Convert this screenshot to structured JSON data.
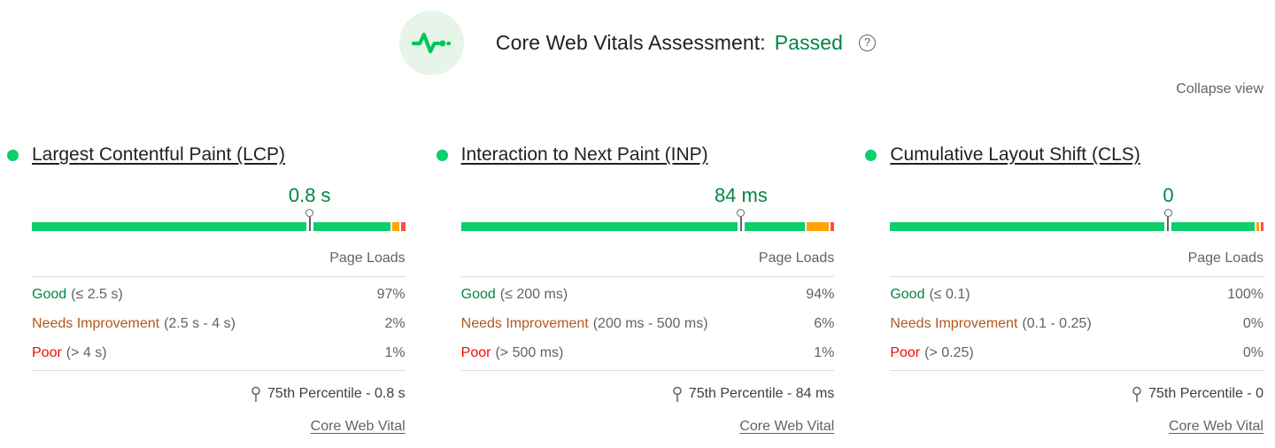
{
  "header": {
    "title": "Core Web Vitals Assessment:",
    "status": "Passed",
    "help_glyph": "?"
  },
  "actions": {
    "collapse_label": "Collapse view"
  },
  "labels": {
    "page_loads": "Page Loads",
    "core_web_vital": "Core Web Vital"
  },
  "colors": {
    "good_bar": "#0cce6b",
    "needs_improvement_bar": "#ffa400",
    "poor_bar": "#ff4e42",
    "good_text": "#018642",
    "needs_improvement_text": "#b0571c",
    "poor_text": "#eb0f00",
    "accent_green": "#00c853",
    "icon_background": "#e6f4ea"
  },
  "chart_data": [
    {
      "type": "bar",
      "title": "Largest Contentful Paint (LCP)",
      "categories": [
        "Good",
        "Needs Improvement",
        "Poor"
      ],
      "values": [
        97,
        2,
        1
      ],
      "percentile_75": "0.8 s",
      "marker_pct": 74.4
    },
    {
      "type": "bar",
      "title": "Interaction to Next Paint (INP)",
      "categories": [
        "Good",
        "Needs Improvement",
        "Poor"
      ],
      "values": [
        94,
        6,
        1
      ],
      "percentile_75": "84 ms",
      "marker_pct": 75
    },
    {
      "type": "bar",
      "title": "Cumulative Layout Shift (CLS)",
      "categories": [
        "Good",
        "Needs Improvement",
        "Poor"
      ],
      "values": [
        100,
        0,
        0
      ],
      "percentile_75": "0",
      "marker_pct": 74.5
    }
  ],
  "metrics": [
    {
      "title": "Largest Contentful Paint (LCP)",
      "value": "0.8 s",
      "marker_pct": 74.4,
      "distribution": {
        "good": 97,
        "needs_improvement": 2,
        "poor": 1
      },
      "rows": [
        {
          "label": "Good",
          "range": "(≤ 2.5 s)",
          "pct": "97%"
        },
        {
          "label": "Needs Improvement",
          "range": "(2.5 s - 4 s)",
          "pct": "2%"
        },
        {
          "label": "Poor",
          "range": "(> 4 s)",
          "pct": "1%"
        }
      ],
      "percentile": "75th Percentile - 0.8 s"
    },
    {
      "title": "Interaction to Next Paint (INP)",
      "value": "84 ms",
      "marker_pct": 75,
      "distribution": {
        "good": 94,
        "needs_improvement": 6,
        "poor": 1
      },
      "rows": [
        {
          "label": "Good",
          "range": "(≤ 200 ms)",
          "pct": "94%"
        },
        {
          "label": "Needs Improvement",
          "range": "(200 ms - 500 ms)",
          "pct": "6%"
        },
        {
          "label": "Poor",
          "range": "(> 500 ms)",
          "pct": "1%"
        }
      ],
      "percentile": "75th Percentile - 84 ms"
    },
    {
      "title": "Cumulative Layout Shift (CLS)",
      "value": "0",
      "marker_pct": 74.5,
      "distribution": {
        "good": 100,
        "needs_improvement": 0,
        "poor": 0
      },
      "rows": [
        {
          "label": "Good",
          "range": "(≤ 0.1)",
          "pct": "100%"
        },
        {
          "label": "Needs Improvement",
          "range": "(0.1 - 0.25)",
          "pct": "0%"
        },
        {
          "label": "Poor",
          "range": "(> 0.25)",
          "pct": "0%"
        }
      ],
      "percentile": "75th Percentile - 0"
    }
  ]
}
